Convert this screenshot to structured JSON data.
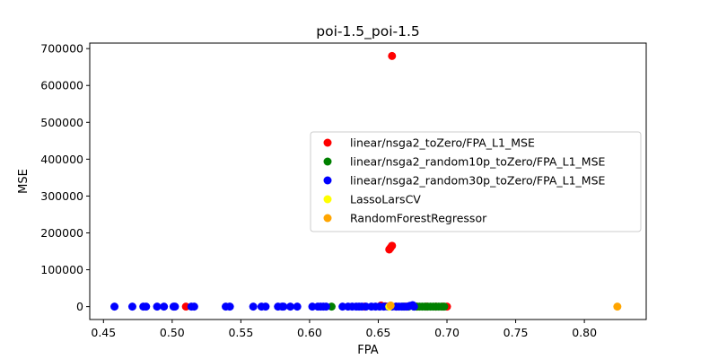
{
  "chart_data": {
    "type": "scatter",
    "title": "poi-1.5_poi-1.5",
    "xlabel": "FPA",
    "ylabel": "MSE",
    "xlim": [
      0.44,
      0.845
    ],
    "ylim": [
      -35000,
      715000
    ],
    "xticks": [
      0.45,
      0.5,
      0.55,
      0.6,
      0.65,
      0.7,
      0.75,
      0.8
    ],
    "xtick_labels": [
      "0.45",
      "0.50",
      "0.55",
      "0.60",
      "0.65",
      "0.70",
      "0.75",
      "0.80"
    ],
    "yticks": [
      0,
      100000,
      200000,
      300000,
      400000,
      500000,
      600000,
      700000
    ],
    "ytick_labels": [
      "0",
      "100000",
      "200000",
      "300000",
      "400000",
      "500000",
      "600000",
      "700000"
    ],
    "grid": false,
    "legend_position": "center-right",
    "series": [
      {
        "name": "linear/nsga2_toZero/FPA_L1_MSE",
        "color": "#ff0000",
        "points": [
          [
            0.66,
            680000
          ],
          [
            0.66,
            165000
          ],
          [
            0.659,
            160000
          ],
          [
            0.658,
            155000
          ],
          [
            0.51,
            0
          ],
          [
            0.64,
            0
          ],
          [
            0.652,
            3000
          ],
          [
            0.655,
            1000
          ],
          [
            0.663,
            0
          ],
          [
            0.67,
            0
          ],
          [
            0.678,
            0
          ],
          [
            0.685,
            0
          ],
          [
            0.692,
            0
          ],
          [
            0.697,
            0
          ],
          [
            0.7,
            0
          ]
        ]
      },
      {
        "name": "linear/nsga2_random10p_toZero/FPA_L1_MSE",
        "color": "#008000",
        "points": [
          [
            0.616,
            0
          ],
          [
            0.668,
            0
          ],
          [
            0.672,
            0
          ],
          [
            0.676,
            0
          ],
          [
            0.678,
            0
          ],
          [
            0.68,
            0
          ],
          [
            0.682,
            0
          ],
          [
            0.684,
            0
          ],
          [
            0.686,
            0
          ],
          [
            0.688,
            0
          ],
          [
            0.69,
            0
          ],
          [
            0.692,
            0
          ],
          [
            0.694,
            0
          ],
          [
            0.696,
            0
          ],
          [
            0.698,
            0
          ]
        ]
      },
      {
        "name": "linear/nsga2_random30p_toZero/FPA_L1_MSE",
        "color": "#0000ff",
        "points": [
          [
            0.458,
            0
          ],
          [
            0.471,
            0
          ],
          [
            0.479,
            0
          ],
          [
            0.481,
            0
          ],
          [
            0.489,
            0
          ],
          [
            0.494,
            0
          ],
          [
            0.501,
            0
          ],
          [
            0.502,
            0
          ],
          [
            0.514,
            0
          ],
          [
            0.516,
            0
          ],
          [
            0.539,
            0
          ],
          [
            0.542,
            0
          ],
          [
            0.559,
            0
          ],
          [
            0.565,
            0
          ],
          [
            0.568,
            0
          ],
          [
            0.577,
            0
          ],
          [
            0.58,
            0
          ],
          [
            0.581,
            0
          ],
          [
            0.586,
            0
          ],
          [
            0.591,
            0
          ],
          [
            0.602,
            0
          ],
          [
            0.606,
            0
          ],
          [
            0.608,
            0
          ],
          [
            0.61,
            0
          ],
          [
            0.612,
            0
          ],
          [
            0.624,
            0
          ],
          [
            0.628,
            0
          ],
          [
            0.631,
            0
          ],
          [
            0.634,
            0
          ],
          [
            0.636,
            0
          ],
          [
            0.638,
            0
          ],
          [
            0.641,
            0
          ],
          [
            0.645,
            0
          ],
          [
            0.648,
            0
          ],
          [
            0.651,
            0
          ],
          [
            0.654,
            0
          ],
          [
            0.657,
            0
          ],
          [
            0.66,
            0
          ],
          [
            0.663,
            0
          ],
          [
            0.665,
            0
          ],
          [
            0.667,
            0
          ],
          [
            0.669,
            0
          ],
          [
            0.671,
            0
          ],
          [
            0.673,
            2000
          ],
          [
            0.675,
            4000
          ],
          [
            0.676,
            0
          ]
        ]
      },
      {
        "name": "LassoLarsCV",
        "color": "#ffff00",
        "points": [
          [
            0.658,
            0
          ]
        ]
      },
      {
        "name": "RandomForestRegressor",
        "color": "#ffa500",
        "points": [
          [
            0.659,
            3000
          ],
          [
            0.824,
            0
          ]
        ]
      }
    ]
  }
}
